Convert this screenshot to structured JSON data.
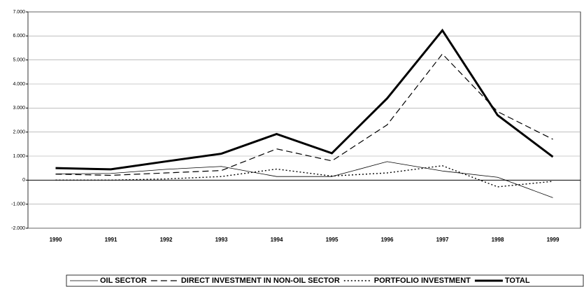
{
  "chart_data": {
    "type": "line",
    "categories": [
      "1990",
      "1991",
      "1992",
      "1993",
      "1994",
      "1995",
      "1996",
      "1997",
      "1998",
      "1999"
    ],
    "series": [
      {
        "name": "OIL SECTOR",
        "color": "#000000",
        "values": [
          260,
          280,
          450,
          570,
          150,
          150,
          770,
          380,
          120,
          -730
        ]
      },
      {
        "name": "DIRECT INVESTMENT IN NON-OIL SECTOR",
        "color": "#000000",
        "values": [
          250,
          200,
          300,
          400,
          1300,
          800,
          2300,
          5250,
          2850,
          1700
        ]
      },
      {
        "name": "PORTFOLIO INVESTMENT",
        "color": "#000000",
        "values": [
          0,
          0,
          50,
          150,
          460,
          170,
          300,
          600,
          -280,
          -50
        ]
      },
      {
        "name": "TOTAL",
        "color": "#000000",
        "values": [
          500,
          450,
          780,
          1100,
          1920,
          1120,
          3400,
          6230,
          2700,
          970
        ]
      }
    ],
    "ylim": [
      -2000,
      7000
    ],
    "yticks": [
      {
        "value": -2000,
        "label": "-2.000"
      },
      {
        "value": -1000,
        "label": "-1.000"
      },
      0,
      {
        "value": 1000,
        "label": "1.000"
      },
      {
        "value": 2000,
        "label": "2.000"
      },
      {
        "value": 3000,
        "label": "3.000"
      },
      {
        "value": 4000,
        "label": "4.000"
      },
      {
        "value": 5000,
        "label": "5.000"
      },
      {
        "value": 6000,
        "label": "6.000"
      },
      {
        "value": 7000,
        "label": "7.000"
      }
    ],
    "grid": true
  }
}
